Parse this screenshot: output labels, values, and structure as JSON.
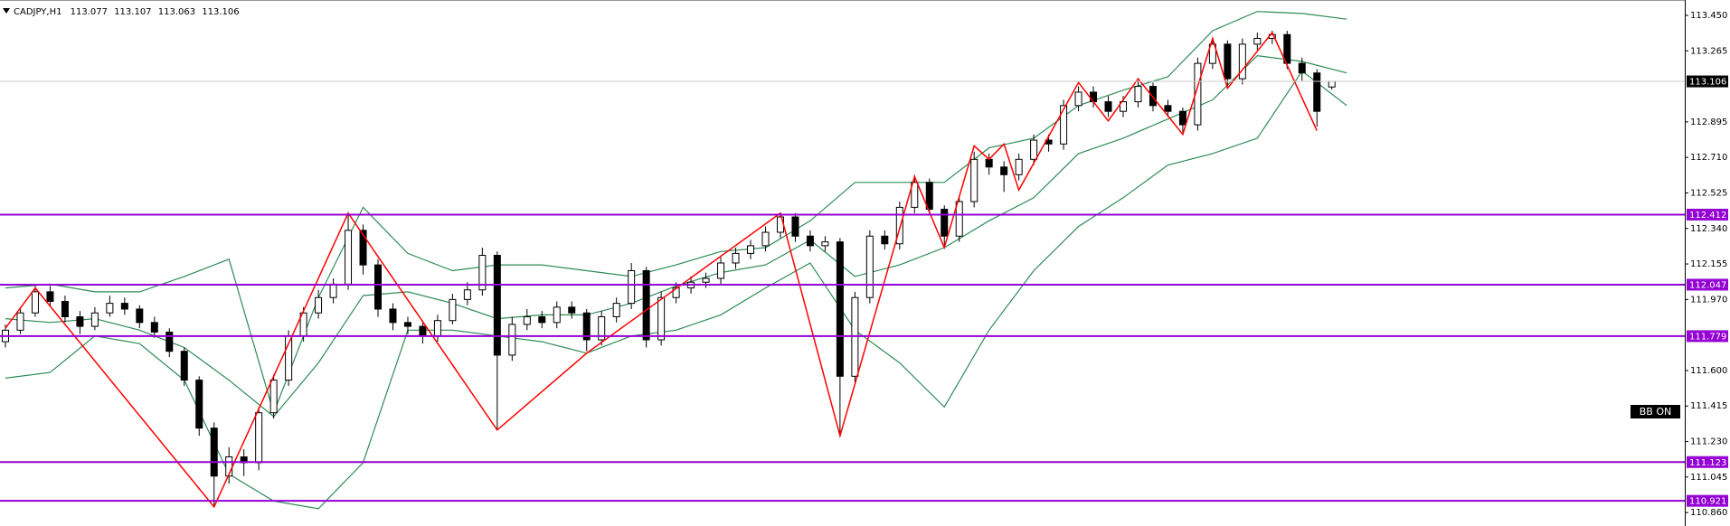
{
  "chart_data": {
    "type": "candlestick",
    "symbol": "CADJPY,H1",
    "open": [
      111.75,
      111.81,
      111.9,
      112.01,
      111.96,
      111.88,
      111.83,
      111.9,
      111.95,
      111.92,
      111.85,
      111.8,
      111.7,
      111.55,
      111.3,
      111.05,
      111.15,
      111.12,
      111.38,
      111.55,
      111.78,
      111.9,
      111.98,
      112.05,
      112.33,
      112.15,
      111.92,
      111.85,
      111.83,
      111.78,
      111.86,
      111.97,
      112.02,
      112.2,
      111.68,
      111.84,
      111.88,
      111.85,
      111.93,
      111.9,
      111.76,
      111.88,
      111.95,
      112.12,
      111.76,
      111.98,
      112.03,
      112.06,
      112.08,
      112.16,
      112.21,
      112.25,
      112.32,
      112.4,
      112.3,
      112.25,
      112.27,
      111.57,
      111.98,
      112.3,
      112.26,
      112.45,
      112.58,
      112.44,
      112.3,
      112.48,
      112.7,
      112.66,
      112.62,
      112.7,
      112.8,
      112.78,
      112.98,
      113.05,
      113.0,
      112.95,
      113.0,
      113.08,
      112.98,
      112.95,
      112.88,
      113.2,
      113.3,
      113.12,
      113.3,
      113.33,
      113.35,
      113.2,
      113.15,
      113.077
    ],
    "high": [
      111.84,
      111.93,
      112.04,
      112.04,
      111.99,
      111.91,
      111.93,
      111.99,
      111.98,
      111.94,
      111.88,
      111.82,
      111.72,
      111.57,
      111.33,
      111.2,
      111.19,
      111.41,
      111.58,
      111.81,
      111.93,
      112.02,
      112.08,
      112.42,
      112.36,
      112.18,
      111.95,
      111.88,
      111.86,
      111.89,
      112.0,
      112.06,
      112.24,
      112.22,
      111.88,
      111.92,
      111.91,
      111.96,
      111.96,
      111.92,
      111.91,
      111.98,
      112.16,
      112.14,
      112.01,
      112.06,
      112.09,
      112.11,
      112.19,
      112.24,
      112.28,
      112.35,
      112.42,
      112.42,
      112.33,
      112.3,
      112.29,
      112.01,
      112.33,
      112.33,
      112.48,
      112.62,
      112.6,
      112.46,
      112.51,
      112.74,
      112.73,
      112.69,
      112.73,
      112.83,
      112.83,
      113.01,
      113.08,
      113.08,
      113.03,
      113.03,
      113.11,
      113.1,
      113.01,
      112.97,
      113.23,
      113.33,
      113.32,
      113.33,
      113.36,
      113.37,
      113.37,
      113.23,
      113.17,
      113.107
    ],
    "low": [
      111.72,
      111.79,
      111.88,
      111.93,
      111.85,
      111.79,
      111.81,
      111.88,
      111.89,
      111.82,
      111.77,
      111.67,
      111.52,
      111.26,
      110.89,
      111.01,
      111.05,
      111.08,
      111.35,
      111.52,
      111.75,
      111.87,
      111.95,
      112.02,
      112.1,
      111.88,
      111.81,
      111.79,
      111.74,
      111.75,
      111.84,
      111.94,
      111.99,
      111.29,
      111.65,
      111.81,
      111.82,
      111.82,
      111.87,
      111.7,
      111.73,
      111.85,
      111.92,
      111.72,
      111.73,
      111.95,
      112.0,
      112.03,
      112.05,
      112.13,
      112.18,
      112.22,
      112.29,
      112.27,
      112.22,
      112.22,
      111.26,
      111.54,
      111.95,
      112.23,
      112.23,
      112.42,
      112.41,
      112.25,
      112.27,
      112.45,
      112.62,
      112.53,
      112.59,
      112.67,
      112.74,
      112.75,
      112.95,
      112.97,
      112.92,
      112.92,
      112.97,
      112.95,
      112.92,
      112.84,
      112.85,
      113.17,
      113.08,
      113.09,
      113.27,
      113.3,
      113.17,
      113.11,
      112.87,
      113.063
    ],
    "close": [
      111.81,
      111.9,
      112.01,
      111.96,
      111.88,
      111.83,
      111.9,
      111.95,
      111.92,
      111.85,
      111.8,
      111.7,
      111.55,
      111.3,
      111.05,
      111.15,
      111.12,
      111.38,
      111.55,
      111.78,
      111.9,
      111.98,
      112.05,
      112.33,
      112.15,
      111.92,
      111.85,
      111.83,
      111.78,
      111.86,
      111.97,
      112.02,
      112.2,
      111.68,
      111.84,
      111.88,
      111.85,
      111.93,
      111.9,
      111.76,
      111.88,
      111.95,
      112.12,
      111.76,
      111.98,
      112.03,
      112.06,
      112.08,
      112.16,
      112.21,
      112.25,
      112.32,
      112.4,
      112.3,
      112.25,
      112.27,
      111.57,
      111.98,
      112.3,
      112.26,
      112.45,
      112.58,
      112.44,
      112.3,
      112.48,
      112.7,
      112.66,
      112.62,
      112.7,
      112.8,
      112.78,
      112.98,
      113.05,
      113.0,
      112.95,
      113.0,
      113.08,
      112.98,
      112.95,
      112.88,
      113.2,
      113.3,
      113.12,
      113.3,
      113.33,
      113.35,
      113.2,
      113.15,
      112.95,
      113.106
    ],
    "up_color": "#ffffff",
    "down_color": "#000000",
    "ylim": [
      110.79,
      113.53
    ],
    "yticks": [
      {
        "value": 113.45,
        "label": "113.450"
      },
      113.265,
      112.895,
      {
        "value": 112.71,
        "label": "112.710"
      },
      112.525,
      {
        "value": 112.34,
        "label": "112.340"
      },
      112.155,
      {
        "value": 111.97,
        "label": "111.970"
      },
      {
        "value": 111.6,
        "label": "111.600"
      },
      111.415,
      {
        "value": 111.23,
        "label": "111.230"
      },
      111.045,
      {
        "value": 110.86,
        "label": "110.860"
      }
    ],
    "bands": {
      "color": "#2e8b57",
      "x": [
        0,
        3,
        6,
        9,
        12,
        15,
        18,
        21,
        24,
        27,
        30,
        33,
        36,
        39,
        42,
        45,
        48,
        51,
        54,
        57,
        60,
        63,
        66,
        69,
        72,
        75,
        78,
        81,
        84,
        87,
        90
      ],
      "upper": [
        112.03,
        112.05,
        112.01,
        112.01,
        112.09,
        112.18,
        111.38,
        111.98,
        112.45,
        112.21,
        112.12,
        112.15,
        112.15,
        112.12,
        112.09,
        112.15,
        112.22,
        112.24,
        112.38,
        112.58,
        112.58,
        112.58,
        112.76,
        112.81,
        112.98,
        113.06,
        113.13,
        113.37,
        113.47,
        113.46,
        113.43
      ],
      "middle": [
        111.87,
        111.85,
        111.87,
        111.81,
        111.72,
        111.55,
        111.36,
        111.64,
        111.99,
        112.01,
        111.95,
        111.87,
        111.89,
        111.89,
        111.95,
        112.04,
        112.11,
        112.15,
        112.28,
        112.09,
        112.15,
        112.24,
        112.38,
        112.5,
        112.73,
        112.81,
        112.91,
        113.01,
        113.24,
        113.21,
        113.15
      ],
      "lower": [
        111.56,
        111.59,
        111.78,
        111.74,
        111.55,
        111.06,
        110.92,
        110.88,
        111.12,
        111.81,
        111.81,
        111.78,
        111.75,
        111.69,
        111.78,
        111.81,
        111.89,
        112.03,
        112.16,
        111.81,
        111.64,
        111.41,
        111.81,
        112.12,
        112.35,
        112.5,
        112.67,
        112.73,
        112.81,
        113.16,
        112.98
      ]
    },
    "zigzag": {
      "color": "#ff0000",
      "x": [
        0,
        2,
        14,
        23,
        33,
        39,
        52,
        56,
        61,
        63,
        65,
        66,
        67,
        68,
        72,
        74,
        76,
        79,
        81,
        82,
        85,
        88
      ],
      "y": [
        111.82,
        112.03,
        110.89,
        112.42,
        111.29,
        111.69,
        112.42,
        111.26,
        112.61,
        112.24,
        112.77,
        112.7,
        112.78,
        112.54,
        113.1,
        112.9,
        113.12,
        112.83,
        113.33,
        113.07,
        113.36,
        112.85
      ]
    },
    "levels": [
      112.412,
      112.047,
      111.779,
      111.123,
      110.921
    ],
    "level_color": "#9400d3",
    "annotation": "BB ON"
  }
}
